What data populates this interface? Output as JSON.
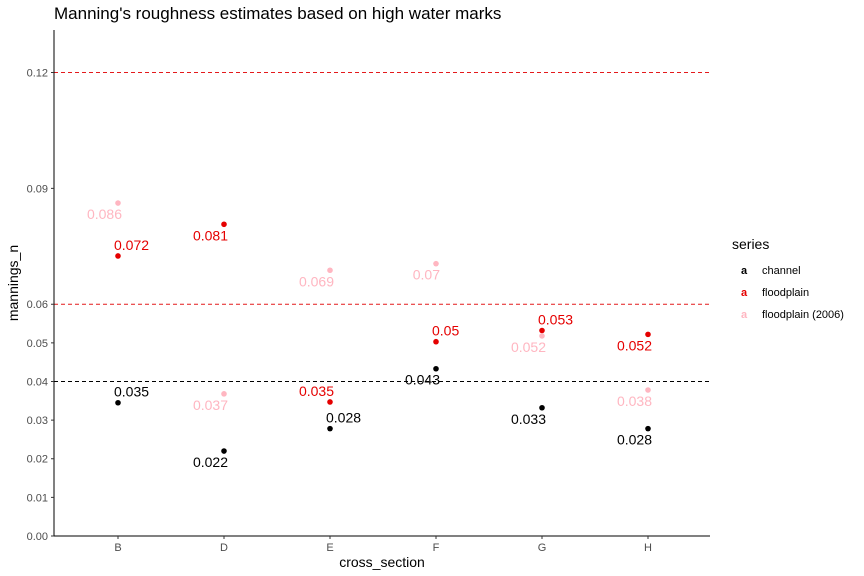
{
  "chart_data": {
    "type": "scatter",
    "title": "Manning's roughness estimates based on high water marks",
    "xlabel": "cross_section",
    "ylabel": "mannings_n",
    "categories": [
      "B",
      "D",
      "E",
      "F",
      "G",
      "H"
    ],
    "ylim": [
      0,
      0.131
    ],
    "yticks": [
      0.0,
      0.01,
      0.02,
      0.03,
      0.04,
      0.05,
      0.06,
      0.09,
      0.12
    ],
    "ytick_labels": [
      "0.00",
      "0.01",
      "0.02",
      "0.03",
      "0.04",
      "0.05",
      "0.06",
      "0.09",
      "0.12"
    ],
    "grid": false,
    "legend": {
      "title": "series",
      "position": "right",
      "key_glyph": "a"
    },
    "reference_lines": [
      {
        "y": 0.12,
        "color": "#e41a1c",
        "style": "dashed"
      },
      {
        "y": 0.06,
        "color": "#e41a1c",
        "style": "dashed"
      },
      {
        "y": 0.04,
        "color": "#000000",
        "style": "dashed"
      }
    ],
    "series": [
      {
        "name": "channel",
        "color": "#000000",
        "points": [
          {
            "x": "B",
            "y": 0.0345,
            "label": "0.035",
            "label_pos": "above-right"
          },
          {
            "x": "D",
            "y": 0.022,
            "label": "0.022",
            "label_pos": "below-left"
          },
          {
            "x": "E",
            "y": 0.0278,
            "label": "0.028",
            "label_pos": "above-right"
          },
          {
            "x": "F",
            "y": 0.0433,
            "label": "0.043",
            "label_pos": "below-left"
          },
          {
            "x": "G",
            "y": 0.0332,
            "label": "0.033",
            "label_pos": "below-left"
          },
          {
            "x": "H",
            "y": 0.0278,
            "label": "0.028",
            "label_pos": "below-left"
          }
        ]
      },
      {
        "name": "floodplain",
        "color": "#e50000",
        "points": [
          {
            "x": "B",
            "y": 0.0725,
            "label": "0.072",
            "label_pos": "above-right"
          },
          {
            "x": "D",
            "y": 0.0807,
            "label": "0.081",
            "label_pos": "below-left"
          },
          {
            "x": "E",
            "y": 0.0347,
            "label": "0.035",
            "label_pos": "above-left"
          },
          {
            "x": "F",
            "y": 0.0503,
            "label": "0.05",
            "label_pos": "above-right"
          },
          {
            "x": "G",
            "y": 0.0532,
            "label": "0.053",
            "label_pos": "above-right"
          },
          {
            "x": "H",
            "y": 0.0522,
            "label": "0.052",
            "label_pos": "below-left"
          }
        ]
      },
      {
        "name": "floodplain (2006)",
        "color": "#ffb6c1",
        "points": [
          {
            "x": "B",
            "y": 0.0862,
            "label": "0.086",
            "label_pos": "below-left"
          },
          {
            "x": "D",
            "y": 0.0368,
            "label": "0.037",
            "label_pos": "below-left"
          },
          {
            "x": "E",
            "y": 0.0688,
            "label": "0.069",
            "label_pos": "below-left"
          },
          {
            "x": "F",
            "y": 0.0705,
            "label": "0.07",
            "label_pos": "below-left"
          },
          {
            "x": "G",
            "y": 0.0518,
            "label": "0.052",
            "label_pos": "below-left"
          },
          {
            "x": "H",
            "y": 0.0378,
            "label": "0.038",
            "label_pos": "below-left"
          }
        ]
      }
    ]
  }
}
